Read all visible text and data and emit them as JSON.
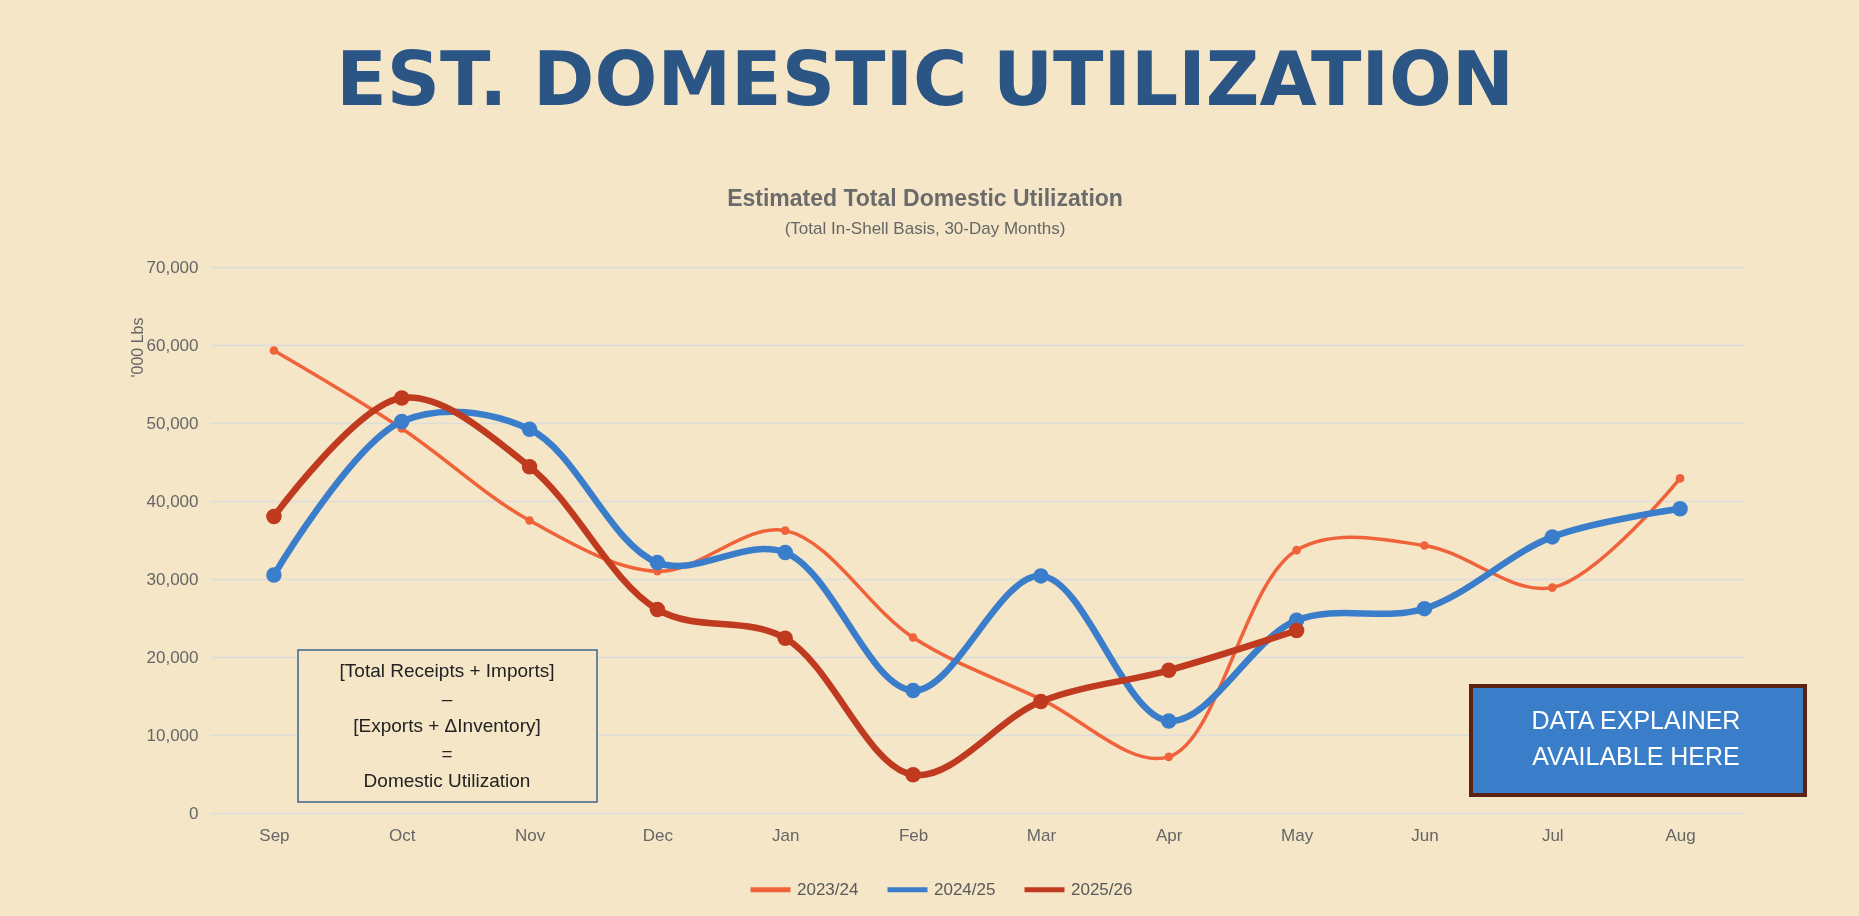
{
  "chart_data": {
    "type": "line",
    "title": "EST. DOMESTIC UTILIZATION",
    "subtitle": "Estimated Total Domestic Utilization",
    "ylabel": "'000 Lbs",
    "categories": [
      "Sep",
      "Oct",
      "Nov",
      "Dec",
      "Jan",
      "Feb",
      "Mar",
      "Apr",
      "May",
      "Jun",
      "Jul",
      "Aug"
    ],
    "series": [
      {
        "name": "2023/24",
        "color": "#F0623A",
        "values": [
          59300,
          49300,
          37500,
          31000,
          36200,
          22500,
          14600,
          7200,
          33700,
          34300,
          28900,
          42900
        ]
      },
      {
        "name": "2024/25",
        "color": "#3A7DCB",
        "values": [
          30500,
          50200,
          49200,
          32100,
          33400,
          15700,
          30400,
          11800,
          24700,
          26200,
          35400,
          39000
        ]
      },
      {
        "name": "2025/26",
        "color": "#BF3A1F",
        "values": [
          38000,
          53200,
          44400,
          26100,
          22400,
          4900,
          14300,
          18300,
          23400,
          null,
          null,
          null
        ]
      }
    ],
    "ylim": [
      0,
      70000
    ],
    "yticks": [
      {
        "value": 0,
        "label": "0"
      },
      {
        "value": 10000,
        "label": "10,000"
      },
      {
        "value": 20000,
        "label": "20,000"
      },
      {
        "value": 30000,
        "label": "30,000"
      },
      {
        "value": 40000,
        "label": "40,000"
      },
      {
        "value": 50000,
        "label": "50,000"
      },
      {
        "value": 60000,
        "label": "60,000"
      },
      {
        "value": 70000,
        "label": "70,000"
      }
    ],
    "grid": "y",
    "legend": "bottom",
    "marker": "circle",
    "annotations": [
      "(Total In-Shell Basis, 30-Day Months)",
      "[Total Receipts + Imports]\n–\n[Exports + ΔInventory]\n=\nDomestic Utilization",
      "DATA EXPLAINER\nAVAILABLE HERE"
    ]
  }
}
